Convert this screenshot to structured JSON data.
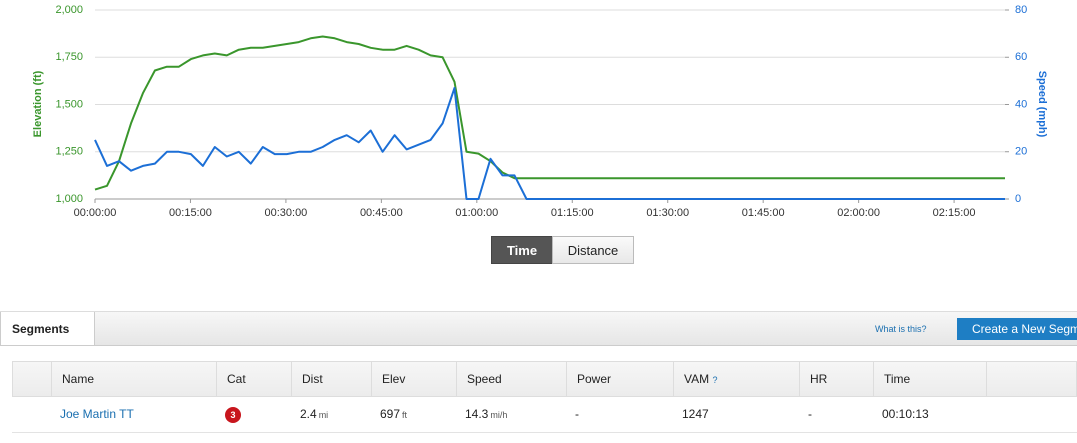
{
  "chart_data": {
    "type": "line",
    "x": [
      0,
      113,
      226,
      339,
      452,
      565,
      678,
      791,
      904,
      1017,
      1130,
      1243,
      1356,
      1469,
      1582,
      1695,
      1808,
      1921,
      2034,
      2147,
      2260,
      2373,
      2486,
      2599,
      2712,
      2825,
      2938,
      3051,
      3164,
      3277,
      3390,
      3503,
      3616,
      3729,
      3842,
      3955,
      4068,
      8580
    ],
    "xlim": [
      0,
      8580
    ],
    "xticks": [
      {
        "value": 0,
        "label": "00:00:00"
      },
      {
        "value": 900,
        "label": "00:15:00"
      },
      {
        "value": 1800,
        "label": "00:30:00"
      },
      {
        "value": 2700,
        "label": "00:45:00"
      },
      {
        "value": 3600,
        "label": "01:00:00"
      },
      {
        "value": 4500,
        "label": "01:15:00"
      },
      {
        "value": 5400,
        "label": "01:30:00"
      },
      {
        "value": 6300,
        "label": "01:45:00"
      },
      {
        "value": 7200,
        "label": "02:00:00"
      },
      {
        "value": 8100,
        "label": "02:15:00"
      }
    ],
    "y_label": "Elevation (ft)",
    "y2_label": "Speed (mph)",
    "ylim": [
      1000,
      2000
    ],
    "yticks": [
      {
        "value": 1000,
        "label": "1,000"
      },
      {
        "value": 1250,
        "label": "1,250"
      },
      {
        "value": 1500,
        "label": "1,500"
      },
      {
        "value": 1750,
        "label": "1,750"
      },
      {
        "value": 2000,
        "label": "2,000"
      }
    ],
    "y2lim": [
      0,
      80
    ],
    "y2ticks": [
      0,
      20,
      40,
      60,
      80
    ],
    "grid": true,
    "series": [
      {
        "name": "Elevation",
        "color": "#3a962c",
        "values": [
          1050,
          1070,
          1200,
          1400,
          1560,
          1680,
          1700,
          1700,
          1740,
          1760,
          1770,
          1760,
          1790,
          1800,
          1800,
          1810,
          1820,
          1830,
          1850,
          1860,
          1850,
          1830,
          1820,
          1800,
          1790,
          1790,
          1810,
          1790,
          1760,
          1750,
          1620,
          1250,
          1240,
          1200,
          1140,
          1110,
          1110,
          1110
        ]
      },
      {
        "name": "Speed",
        "color": "#1c6fd6",
        "axis": "y2",
        "values": [
          25,
          14,
          16,
          12,
          14,
          15,
          20,
          20,
          19,
          14,
          22,
          18,
          20,
          15,
          22,
          19,
          19,
          20,
          20,
          22,
          25,
          27,
          24,
          29,
          20,
          27,
          21,
          23,
          25,
          32,
          47,
          0,
          0,
          17,
          10,
          10,
          0,
          0
        ]
      }
    ]
  },
  "view_toggle": {
    "options": [
      "Time",
      "Distance"
    ],
    "selected_index": 0
  },
  "segments": {
    "tab": "Segments",
    "help_link": "What is this?",
    "create_button": "Create a New Segm",
    "columns": [
      "Name",
      "Cat",
      "Dist",
      "Elev",
      "Speed",
      "Power",
      "VAM",
      "HR",
      "Time"
    ],
    "vam_help": "?",
    "rows": [
      {
        "name": "Joe Martin TT",
        "cat": 3,
        "dist": {
          "value": 2.4,
          "unit": "mi"
        },
        "elev": {
          "value": 697,
          "unit": "ft"
        },
        "speed": {
          "value": 14.3,
          "unit": "mi/h"
        },
        "power": "-",
        "vam": 1247,
        "hr": "-",
        "time": "00:10:13"
      }
    ]
  }
}
